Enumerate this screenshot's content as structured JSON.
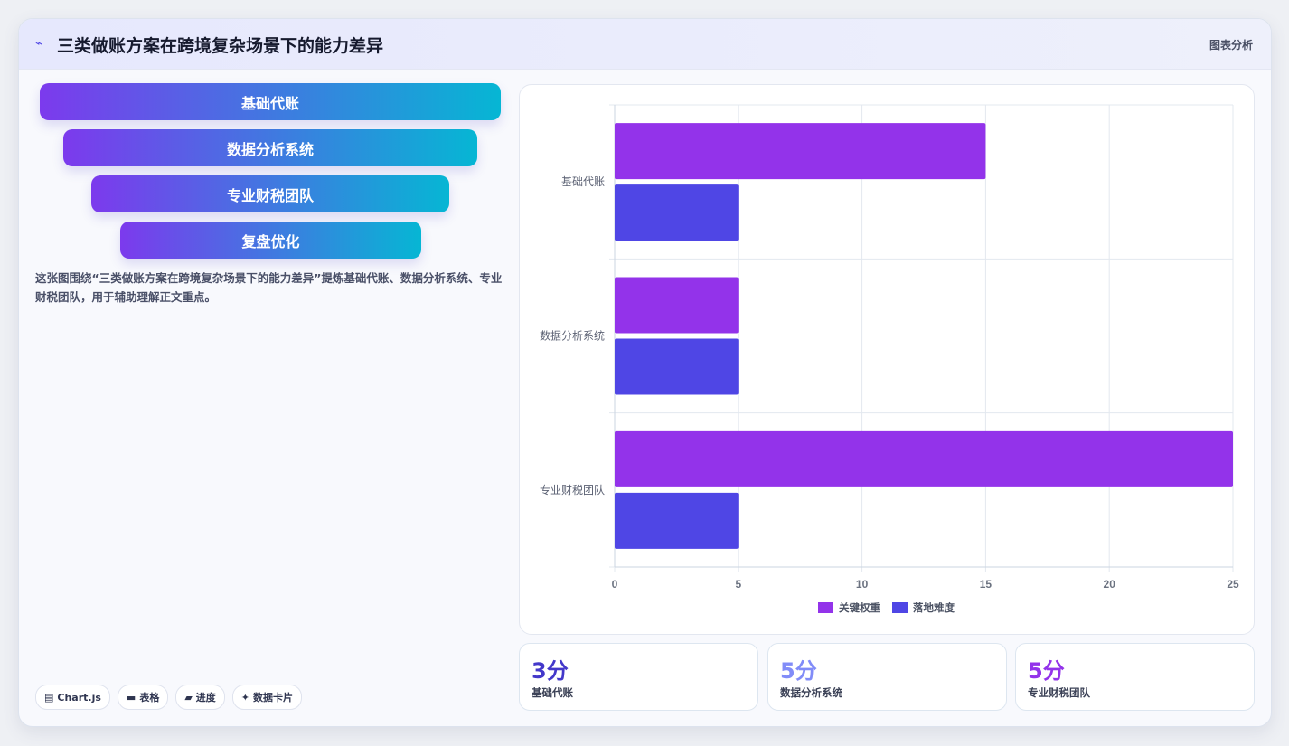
{
  "header": {
    "logo_icon": "wave-icon",
    "title": "三类做账方案在跨境复杂场景下的能力差异",
    "tag": "图表分析"
  },
  "funnel": {
    "steps": [
      "基础代账",
      "数据分析系统",
      "专业财税团队",
      "复盘优化"
    ]
  },
  "description": "这张图围绕“三类做账方案在跨境复杂场景下的能力差异”提炼基础代账、数据分析系统、专业财税团队，用于辅助理解正文重点。",
  "pills": [
    {
      "icon": "chart-icon",
      "glyph": "▤",
      "label": "Chart.js"
    },
    {
      "icon": "table-icon",
      "glyph": "▬",
      "label": "表格"
    },
    {
      "icon": "progress-icon",
      "glyph": "▰",
      "label": "进度"
    },
    {
      "icon": "sparkle-icon",
      "glyph": "✦",
      "label": "数据卡片"
    }
  ],
  "chart_data": {
    "type": "bar",
    "orientation": "horizontal",
    "categories": [
      "基础代账",
      "数据分析系统",
      "专业财税团队"
    ],
    "series": [
      {
        "name": "关键权重",
        "values": [
          15,
          5,
          25
        ],
        "color": "#9333ea"
      },
      {
        "name": "落地难度",
        "values": [
          5,
          5,
          5
        ],
        "color": "#4f46e5"
      }
    ],
    "xlim": [
      0,
      25
    ],
    "xticks": [
      "0",
      "5",
      "10",
      "15",
      "20",
      "25"
    ],
    "grid": true,
    "legend_position": "bottom"
  },
  "stats": [
    {
      "value": "3分",
      "label": "基础代账",
      "color": "#4338ca"
    },
    {
      "value": "5分",
      "label": "数据分析系统",
      "color": "#818cf8"
    },
    {
      "value": "5分",
      "label": "专业财税团队",
      "color": "#9333ea"
    }
  ]
}
